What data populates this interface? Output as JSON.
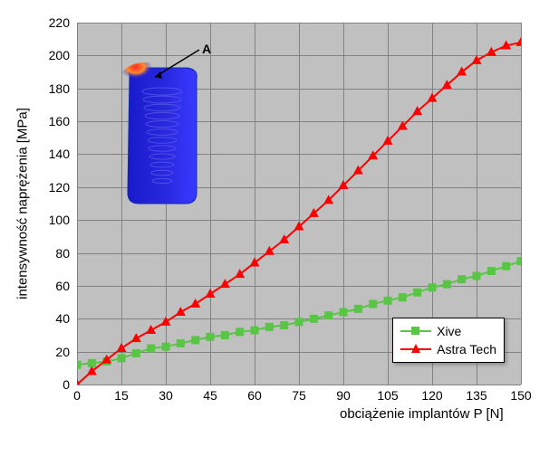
{
  "chart": {
    "type": "line",
    "xlabel": "obciążenie implantów P [N]",
    "ylabel": "intensywność naprężenia [MPa]",
    "background_color": "#c0c0c0",
    "frame_background": "#ffffff",
    "grid_color": "#828282",
    "axis_color": "#000000",
    "label_fontsize": 15,
    "tick_fontsize": 14,
    "xlim": [
      0,
      150
    ],
    "ylim": [
      0,
      220
    ],
    "xtick_step": 15,
    "ytick_step": 20,
    "xticks": [
      0,
      15,
      30,
      45,
      60,
      75,
      90,
      105,
      120,
      135,
      150
    ],
    "yticks": [
      0,
      20,
      40,
      60,
      80,
      100,
      120,
      140,
      160,
      180,
      200,
      220
    ],
    "series": [
      {
        "name": "Xive",
        "color": "#59c545",
        "line_width": 2,
        "marker": "square",
        "marker_size": 9,
        "x": [
          0,
          5,
          10,
          15,
          20,
          25,
          30,
          35,
          40,
          45,
          50,
          55,
          60,
          65,
          70,
          75,
          80,
          85,
          90,
          95,
          100,
          105,
          110,
          115,
          120,
          125,
          130,
          135,
          140,
          145,
          150
        ],
        "y": [
          12,
          13,
          14,
          16,
          19,
          22,
          23,
          25,
          27,
          29,
          30,
          32,
          33,
          35,
          36,
          38,
          40,
          42,
          44,
          46,
          49,
          51,
          53,
          56,
          59,
          61,
          64,
          66,
          69,
          72,
          75
        ]
      },
      {
        "name": "Astra Tech",
        "color": "#ff0000",
        "line_width": 2,
        "marker": "triangle",
        "marker_size": 10,
        "x": [
          0,
          5,
          10,
          15,
          20,
          25,
          30,
          35,
          40,
          45,
          50,
          55,
          60,
          65,
          70,
          75,
          80,
          85,
          90,
          95,
          100,
          105,
          110,
          115,
          120,
          125,
          130,
          135,
          140,
          145,
          150
        ],
        "y": [
          0,
          8,
          15,
          22,
          28,
          33,
          38,
          44,
          49,
          55,
          61,
          67,
          74,
          81,
          88,
          96,
          104,
          112,
          121,
          130,
          139,
          148,
          157,
          166,
          174,
          182,
          190,
          197,
          202,
          206,
          208
        ]
      }
    ],
    "legend": {
      "position": "lower-right",
      "background": "#ffffff",
      "border": "#000000",
      "items": [
        {
          "label": "Xive",
          "series": 0
        },
        {
          "label": "Astra Tech",
          "series": 1
        }
      ]
    },
    "inset": {
      "label": "A",
      "label_color": "#000000",
      "label_fontsize": 14,
      "label_bold": true,
      "body_color": "#2626dd",
      "highlight_color": "#ff2a2a",
      "edge_color": "#0f2bb3",
      "thread_color": "#6a6ae8"
    }
  }
}
